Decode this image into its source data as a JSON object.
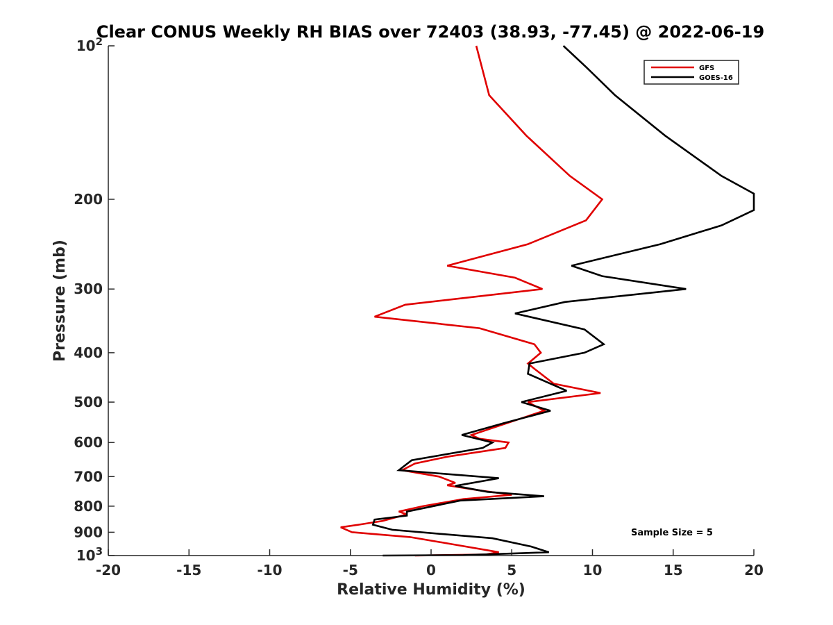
{
  "chart_data": {
    "type": "line",
    "title": "Clear CONUS Weekly RH BIAS over 72403 (38.93, -77.45) @ 2022-06-19",
    "xlabel": "Relative Humidity (%)",
    "ylabel": "Pressure (mb)",
    "xlim": [
      -20,
      20
    ],
    "ylim": [
      100,
      1000
    ],
    "y_scale": "log",
    "y_reversed": true,
    "x_ticks": [
      "-20",
      "-15",
      "-10",
      "-5",
      "0",
      "5",
      "10",
      "15",
      "20"
    ],
    "y_ticks": [
      {
        "value": 100,
        "base": "10",
        "exp": "2"
      },
      {
        "value": 200,
        "label": "200"
      },
      {
        "value": 300,
        "label": "300"
      },
      {
        "value": 400,
        "label": "400"
      },
      {
        "value": 500,
        "label": "500"
      },
      {
        "value": 600,
        "label": "600"
      },
      {
        "value": 700,
        "label": "700"
      },
      {
        "value": 800,
        "label": "800"
      },
      {
        "value": 900,
        "label": "900"
      },
      {
        "value": 1000,
        "base": "10",
        "exp": "3"
      }
    ],
    "grid": false,
    "legend_position": "top-right",
    "annotation": "Sample Size = 5",
    "series": [
      {
        "name": "GFS",
        "color": "#e00000",
        "points": [
          {
            "x": 2.8,
            "y": 100
          },
          {
            "x": 3.6,
            "y": 125
          },
          {
            "x": 5.9,
            "y": 150
          },
          {
            "x": 8.6,
            "y": 180
          },
          {
            "x": 10.6,
            "y": 200
          },
          {
            "x": 9.6,
            "y": 220
          },
          {
            "x": 6.0,
            "y": 245
          },
          {
            "x": 1.0,
            "y": 270
          },
          {
            "x": 5.2,
            "y": 285
          },
          {
            "x": 6.9,
            "y": 300
          },
          {
            "x": -1.6,
            "y": 322
          },
          {
            "x": -3.5,
            "y": 340
          },
          {
            "x": 3.0,
            "y": 358
          },
          {
            "x": 6.4,
            "y": 385
          },
          {
            "x": 6.8,
            "y": 400
          },
          {
            "x": 6.0,
            "y": 420
          },
          {
            "x": 6.4,
            "y": 430
          },
          {
            "x": 7.6,
            "y": 460
          },
          {
            "x": 10.5,
            "y": 480
          },
          {
            "x": 6.0,
            "y": 500
          },
          {
            "x": 7.0,
            "y": 520
          },
          {
            "x": 2.5,
            "y": 580
          },
          {
            "x": 3.0,
            "y": 590
          },
          {
            "x": 4.8,
            "y": 600
          },
          {
            "x": 4.6,
            "y": 615
          },
          {
            "x": 1.0,
            "y": 640
          },
          {
            "x": -1.0,
            "y": 660
          },
          {
            "x": -1.8,
            "y": 680
          },
          {
            "x": 0.5,
            "y": 700
          },
          {
            "x": 1.5,
            "y": 720
          },
          {
            "x": 1.0,
            "y": 728
          },
          {
            "x": 3.0,
            "y": 745
          },
          {
            "x": 5.0,
            "y": 760
          },
          {
            "x": 2.0,
            "y": 775
          },
          {
            "x": -0.5,
            "y": 800
          },
          {
            "x": -2.0,
            "y": 820
          },
          {
            "x": -1.5,
            "y": 830
          },
          {
            "x": -3.0,
            "y": 855
          },
          {
            "x": -4.5,
            "y": 870
          },
          {
            "x": -5.6,
            "y": 880
          },
          {
            "x": -4.9,
            "y": 900
          },
          {
            "x": -1.3,
            "y": 920
          },
          {
            "x": 1.3,
            "y": 950
          },
          {
            "x": 4.2,
            "y": 985
          },
          {
            "x": 3.4,
            "y": 995
          },
          {
            "x": -1.0,
            "y": 1000
          }
        ]
      },
      {
        "name": "GOES-16",
        "color": "#000000",
        "points": [
          {
            "x": 8.2,
            "y": 100
          },
          {
            "x": 9.6,
            "y": 110
          },
          {
            "x": 11.4,
            "y": 125
          },
          {
            "x": 14.5,
            "y": 150
          },
          {
            "x": 18.0,
            "y": 180
          },
          {
            "x": 20.0,
            "y": 195
          },
          {
            "x": 20.0,
            "y": 210
          },
          {
            "x": 18.0,
            "y": 225
          },
          {
            "x": 14.2,
            "y": 245
          },
          {
            "x": 8.7,
            "y": 270
          },
          {
            "x": 10.6,
            "y": 283
          },
          {
            "x": 15.8,
            "y": 300
          },
          {
            "x": 8.3,
            "y": 318
          },
          {
            "x": 5.2,
            "y": 335
          },
          {
            "x": 9.5,
            "y": 360
          },
          {
            "x": 10.7,
            "y": 385
          },
          {
            "x": 9.5,
            "y": 400
          },
          {
            "x": 6.1,
            "y": 420
          },
          {
            "x": 6.0,
            "y": 440
          },
          {
            "x": 8.4,
            "y": 475
          },
          {
            "x": 5.6,
            "y": 500
          },
          {
            "x": 7.4,
            "y": 520
          },
          {
            "x": 4.5,
            "y": 550
          },
          {
            "x": 1.9,
            "y": 580
          },
          {
            "x": 3.8,
            "y": 600
          },
          {
            "x": 3.2,
            "y": 615
          },
          {
            "x": -1.2,
            "y": 650
          },
          {
            "x": -2.0,
            "y": 680
          },
          {
            "x": 4.2,
            "y": 705
          },
          {
            "x": 1.5,
            "y": 730
          },
          {
            "x": 3.5,
            "y": 750
          },
          {
            "x": 7.0,
            "y": 765
          },
          {
            "x": 1.8,
            "y": 780
          },
          {
            "x": -1.5,
            "y": 820
          },
          {
            "x": -1.5,
            "y": 835
          },
          {
            "x": -3.5,
            "y": 850
          },
          {
            "x": -3.6,
            "y": 870
          },
          {
            "x": -2.4,
            "y": 890
          },
          {
            "x": 3.8,
            "y": 925
          },
          {
            "x": 6.2,
            "y": 960
          },
          {
            "x": 7.3,
            "y": 985
          },
          {
            "x": 2.0,
            "y": 998
          },
          {
            "x": -3.0,
            "y": 1000
          }
        ]
      }
    ]
  }
}
